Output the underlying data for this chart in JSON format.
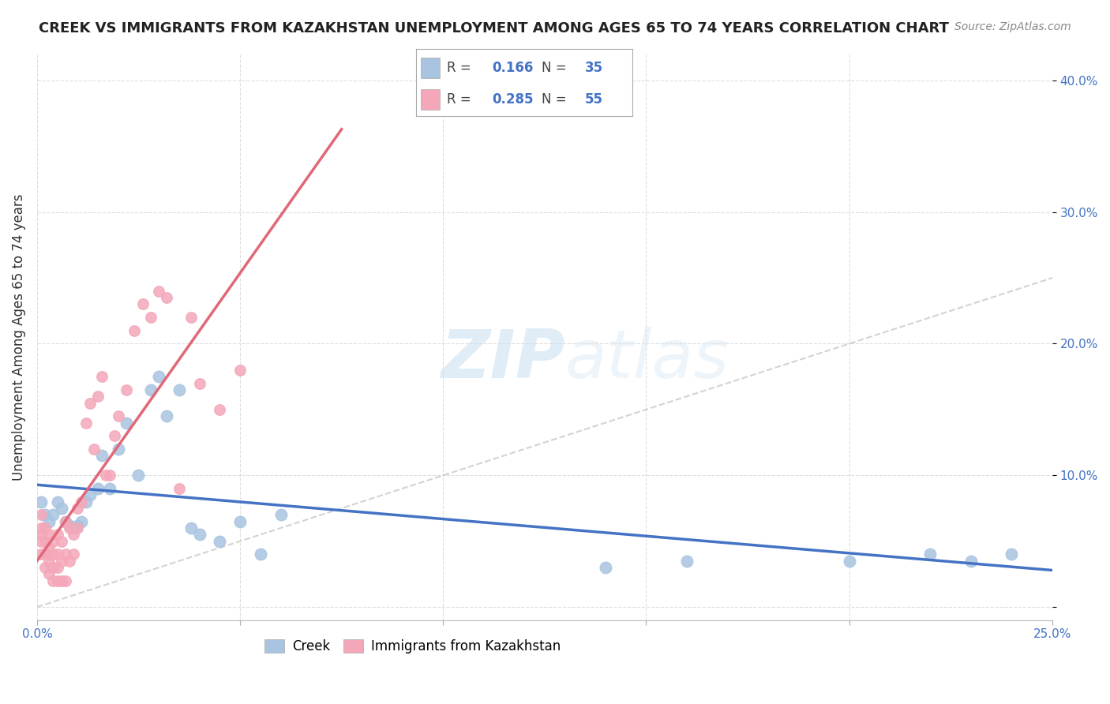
{
  "title": "CREEK VS IMMIGRANTS FROM KAZAKHSTAN UNEMPLOYMENT AMONG AGES 65 TO 74 YEARS CORRELATION CHART",
  "source": "Source: ZipAtlas.com",
  "ylabel": "Unemployment Among Ages 65 to 74 years",
  "xlim": [
    0,
    0.25
  ],
  "ylim": [
    -0.01,
    0.42
  ],
  "creek_R": 0.166,
  "creek_N": 35,
  "kazakh_R": 0.285,
  "kazakh_N": 55,
  "creek_color": "#a8c4e0",
  "kazakh_color": "#f4a7b9",
  "creek_line_color": "#4472c4",
  "kazakh_line_color": "#e06878",
  "diagonal_color": "#c8c8c8",
  "background_color": "#ffffff",
  "watermark_zip": "ZIP",
  "watermark_atlas": "atlas",
  "creek_x": [
    0.001,
    0.002,
    0.003,
    0.004,
    0.005,
    0.006,
    0.007,
    0.008,
    0.009,
    0.01,
    0.011,
    0.012,
    0.013,
    0.015,
    0.016,
    0.018,
    0.02,
    0.022,
    0.025,
    0.028,
    0.03,
    0.032,
    0.035,
    0.038,
    0.04,
    0.045,
    0.05,
    0.055,
    0.06,
    0.14,
    0.16,
    0.2,
    0.22,
    0.23,
    0.24
  ],
  "creek_y": [
    0.08,
    0.07,
    0.065,
    0.07,
    0.08,
    0.075,
    0.065,
    0.062,
    0.06,
    0.062,
    0.065,
    0.08,
    0.085,
    0.09,
    0.115,
    0.09,
    0.12,
    0.14,
    0.1,
    0.165,
    0.175,
    0.145,
    0.165,
    0.06,
    0.055,
    0.05,
    0.065,
    0.04,
    0.07,
    0.03,
    0.035,
    0.035,
    0.04,
    0.035,
    0.04
  ],
  "kazakh_x": [
    0.001,
    0.001,
    0.001,
    0.001,
    0.001,
    0.002,
    0.002,
    0.002,
    0.002,
    0.003,
    0.003,
    0.003,
    0.003,
    0.003,
    0.004,
    0.004,
    0.004,
    0.004,
    0.005,
    0.005,
    0.005,
    0.005,
    0.006,
    0.006,
    0.006,
    0.007,
    0.007,
    0.007,
    0.008,
    0.008,
    0.009,
    0.009,
    0.01,
    0.01,
    0.011,
    0.012,
    0.013,
    0.014,
    0.015,
    0.016,
    0.017,
    0.018,
    0.019,
    0.02,
    0.022,
    0.024,
    0.026,
    0.028,
    0.03,
    0.032,
    0.035,
    0.038,
    0.04,
    0.045,
    0.05
  ],
  "kazakh_y": [
    0.07,
    0.06,
    0.055,
    0.05,
    0.04,
    0.06,
    0.05,
    0.04,
    0.03,
    0.055,
    0.045,
    0.04,
    0.035,
    0.025,
    0.05,
    0.04,
    0.03,
    0.02,
    0.055,
    0.04,
    0.03,
    0.02,
    0.05,
    0.035,
    0.02,
    0.065,
    0.04,
    0.02,
    0.06,
    0.035,
    0.055,
    0.04,
    0.075,
    0.06,
    0.08,
    0.14,
    0.155,
    0.12,
    0.16,
    0.175,
    0.1,
    0.1,
    0.13,
    0.145,
    0.165,
    0.21,
    0.23,
    0.22,
    0.24,
    0.235,
    0.09,
    0.22,
    0.17,
    0.15,
    0.18
  ]
}
